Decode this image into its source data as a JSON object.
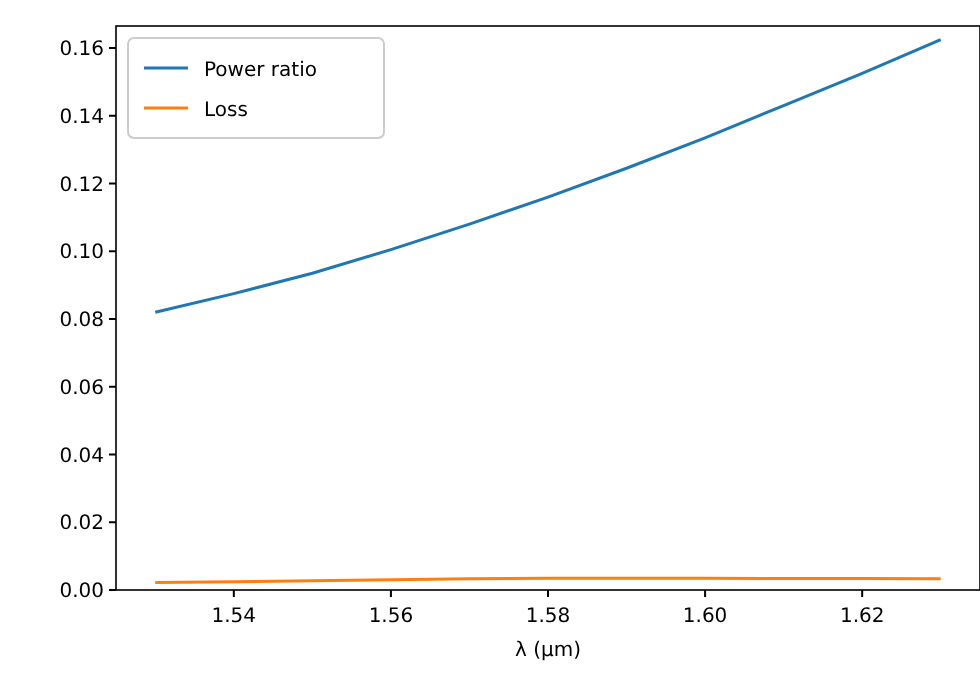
{
  "chart_data": {
    "type": "line",
    "xlabel": "λ (μm)",
    "x": [
      1.53,
      1.54,
      1.55,
      1.56,
      1.57,
      1.58,
      1.59,
      1.6,
      1.61,
      1.62,
      1.63
    ],
    "series": [
      {
        "name": "Power ratio",
        "color": "#1f77b4",
        "values": [
          0.082,
          0.0875,
          0.0935,
          0.1005,
          0.108,
          0.116,
          0.1245,
          0.1335,
          0.143,
          0.1525,
          0.1625
        ]
      },
      {
        "name": "Loss",
        "color": "#ff7f0e",
        "values": [
          0.0022,
          0.0024,
          0.0027,
          0.003,
          0.0033,
          0.0035,
          0.0035,
          0.0035,
          0.0034,
          0.0034,
          0.0033
        ]
      }
    ],
    "xlim": [
      1.525,
      1.635
    ],
    "xticks": [
      {
        "value": 1.54,
        "label": "1.54"
      },
      {
        "value": 1.56,
        "label": "1.56"
      },
      {
        "value": 1.58,
        "label": "1.58"
      },
      {
        "value": 1.6,
        "label": "1.60"
      },
      {
        "value": 1.62,
        "label": "1.62"
      }
    ],
    "ylim": [
      0,
      0.1665
    ],
    "yticks": [
      {
        "value": 0,
        "label": "0.00"
      },
      {
        "value": 0.02,
        "label": "0.02"
      },
      {
        "value": 0.04,
        "label": "0.04"
      },
      {
        "value": 0.06,
        "label": "0.06"
      },
      {
        "value": 0.08,
        "label": "0.08"
      },
      {
        "value": 0.1,
        "label": "0.10"
      },
      {
        "value": 0.12,
        "label": "0.12"
      },
      {
        "value": 0.14,
        "label": "0.14"
      },
      {
        "value": 0.16,
        "label": "0.16"
      }
    ],
    "legend": "top left",
    "grid": false
  }
}
